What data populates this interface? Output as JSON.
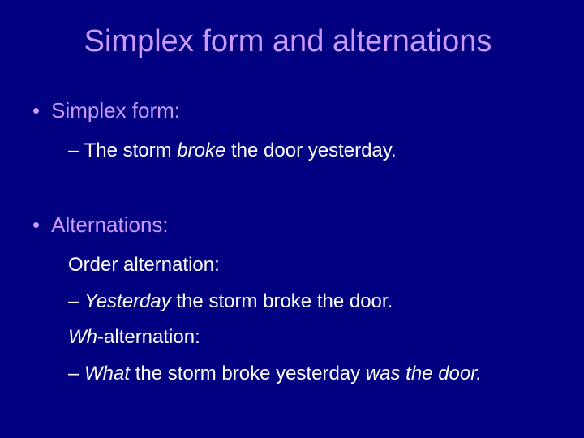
{
  "colors": {
    "background": "#000080",
    "title_color": "#cc99ff",
    "bullet_color": "#cc99ff",
    "body_text": "#ffffff"
  },
  "typography": {
    "font_family": "Arial",
    "title_fontsize_pt": 32,
    "bullet_fontsize_pt": 22,
    "body_fontsize_pt": 20
  },
  "title": "Simplex form and alternations",
  "section1": {
    "heading": "Simplex form:",
    "line1_prefix": "– The storm ",
    "line1_verb": "broke",
    "line1_suffix": " the door yesterday."
  },
  "section2": {
    "heading": "Alternations:",
    "orderLabel": "Order alternation:",
    "orderLine_prefix": "– ",
    "orderLine_lead": "Yesterday",
    "orderLine_rest": " the storm broke the door.",
    "whLabel_prefix": "Wh",
    "whLabel_rest": "-alternation:",
    "whLine_prefix": "– ",
    "whLine_lead": "What",
    "whLine_mid": " the storm broke yesterday ",
    "whLine_tail": "was the door."
  }
}
